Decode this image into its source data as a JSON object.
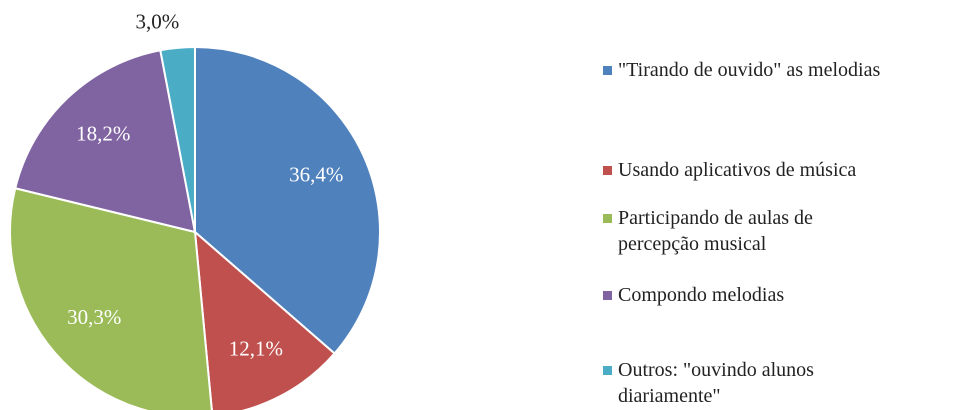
{
  "chart_data": {
    "type": "pie",
    "categories": [
      "\"Tirando de ouvido\" as melodias",
      "Usando aplicativos de música",
      "Participando de aulas de percepção musical",
      "Compondo melodias",
      "Outros: \"ouvindo alunos diariamente\""
    ],
    "values": [
      36.4,
      12.1,
      30.3,
      18.2,
      3.0
    ],
    "value_labels": [
      "36,4%",
      "12,1%",
      "30,3%",
      "18,2%",
      "3,0%"
    ],
    "colors": [
      "#4f81bd",
      "#c0504d",
      "#9bbb59",
      "#8064a2",
      "#4bacc6"
    ],
    "legend": "right"
  }
}
